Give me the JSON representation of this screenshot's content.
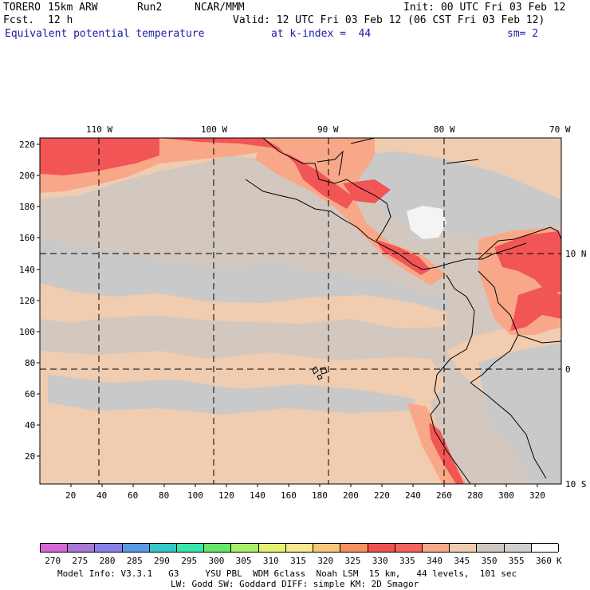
{
  "header": {
    "model": "TORERO",
    "resolution": "15km ARW",
    "run": "Run2",
    "org": "NCAR/MMM",
    "init": "Init: 00 UTC Fri 03 Feb 12",
    "fcst_label": "Fcst.",
    "fcst_value": "12 h",
    "valid": "Valid: 12 UTC Fri 03 Feb 12 (06 CST Fri 03 Feb 12)",
    "field": "Equivalent potential temperature",
    "level": "at k-index =  44",
    "smoothing": "sm= 2"
  },
  "map": {
    "lon_labels": [
      "110 W",
      "100 W",
      "90 W",
      "80 W",
      "70 W"
    ],
    "lat_labels": [
      "10 N",
      "0",
      "10 S"
    ],
    "y_ticks": [
      "220",
      "200",
      "180",
      "160",
      "140",
      "120",
      "100",
      "80",
      "60",
      "40",
      "20"
    ],
    "x_ticks": [
      "20",
      "40",
      "60",
      "80",
      "100",
      "120",
      "140",
      "160",
      "180",
      "200",
      "220",
      "240",
      "260",
      "280",
      "300",
      "320"
    ]
  },
  "colorbar": {
    "unit": "K",
    "labels": [
      "270",
      "275",
      "280",
      "285",
      "290",
      "295",
      "300",
      "305",
      "310",
      "315",
      "320",
      "325",
      "330",
      "335",
      "340",
      "345",
      "350",
      "355",
      "360"
    ],
    "colors": [
      "#d966d9",
      "#a878d8",
      "#8a7fe8",
      "#5a9be8",
      "#33c8c8",
      "#33e8a8",
      "#66e866",
      "#a8f066",
      "#e8f070",
      "#f8e890",
      "#f8c878",
      "#f89060",
      "#f05050",
      "#f86060",
      "#f8a888",
      "#f0ccb0",
      "#d0c8c0",
      "#d0d0d0",
      "#ffffff"
    ]
  },
  "footer": {
    "line1": "Model Info: V3.3.1   G3     YSU PBL  WDM 6class  Noah LSM  15 km,   44 levels,  101 sec",
    "line2": "LW: Godd SW: Goddard DIFF: simple KM: 2D Smagor"
  }
}
